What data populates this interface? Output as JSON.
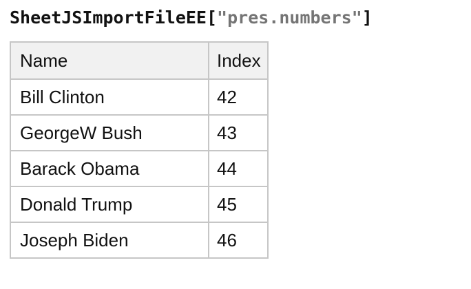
{
  "title": {
    "function_name": "SheetJSImportFileEE",
    "open_bracket": "[",
    "string_literal": "\"pres.numbers\"",
    "close_bracket": "]"
  },
  "colors": {
    "title_text": "#111111",
    "string_literal": "#757575",
    "table_border": "#c6c6c6",
    "header_background": "#f1f1f1",
    "cell_text": "#111111",
    "page_background": "#ffffff"
  },
  "table": {
    "headers": [
      "Name",
      "Index"
    ],
    "rows": [
      {
        "name": "Bill Clinton",
        "index": "42"
      },
      {
        "name": "GeorgeW Bush",
        "index": "43"
      },
      {
        "name": "Barack Obama",
        "index": "44"
      },
      {
        "name": "Donald Trump",
        "index": "45"
      },
      {
        "name": "Joseph Biden",
        "index": "46"
      }
    ]
  }
}
